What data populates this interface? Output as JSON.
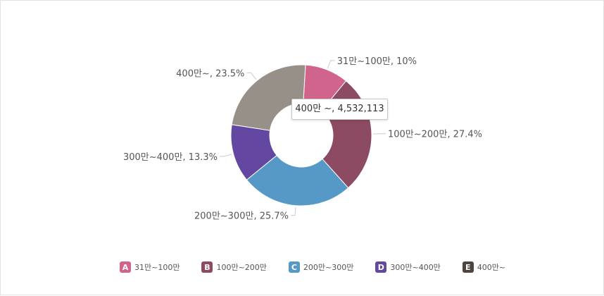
{
  "chart_data": {
    "type": "pie",
    "donut": true,
    "categories": [
      "31만~100만",
      "100만~200만",
      "200만~300만",
      "300만~400만",
      "400만~"
    ],
    "values": [
      10,
      27.4,
      25.7,
      13.3,
      23.5
    ],
    "slice_labels": [
      "31만~100만, 10%",
      "100만~200만, 27.4%",
      "200만~300만, 25.7%",
      "300만~400만, 13.3%",
      "400만~, 23.5%"
    ],
    "colors": [
      "#d0648c",
      "#8c4a63",
      "#5698c6",
      "#6447a0",
      "#969089"
    ],
    "legend_letters": [
      "A",
      "B",
      "C",
      "D",
      "E"
    ],
    "legend_colors": [
      "#d0648c",
      "#8c4a63",
      "#5698c6",
      "#6447a0",
      "#4f4540"
    ],
    "legend_position": "bottom",
    "tooltip": "400만 ~, 4,532,113"
  }
}
